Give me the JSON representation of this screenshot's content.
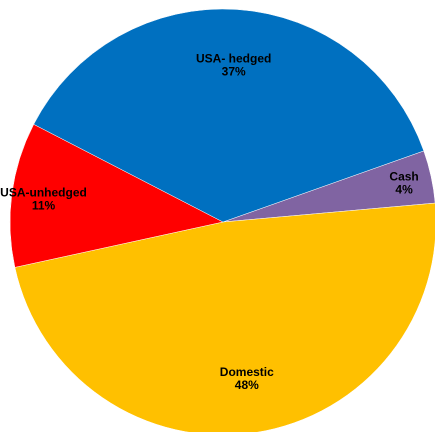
{
  "chart_data": {
    "type": "pie",
    "title": "",
    "slices": [
      {
        "label": "Cash",
        "value": 4,
        "value_label": "4%",
        "color": "#8064A2"
      },
      {
        "label": "Domestic",
        "value": 48,
        "value_label": "48%",
        "color": "#FFC000"
      },
      {
        "label": "USA-unhedged",
        "value": 11,
        "value_label": "11%",
        "color": "#FF0000"
      },
      {
        "label": "USA- hedged",
        "value": 37,
        "value_label": "37%",
        "color": "#0070C0"
      }
    ],
    "legend": "none",
    "data_labels": "inside"
  }
}
